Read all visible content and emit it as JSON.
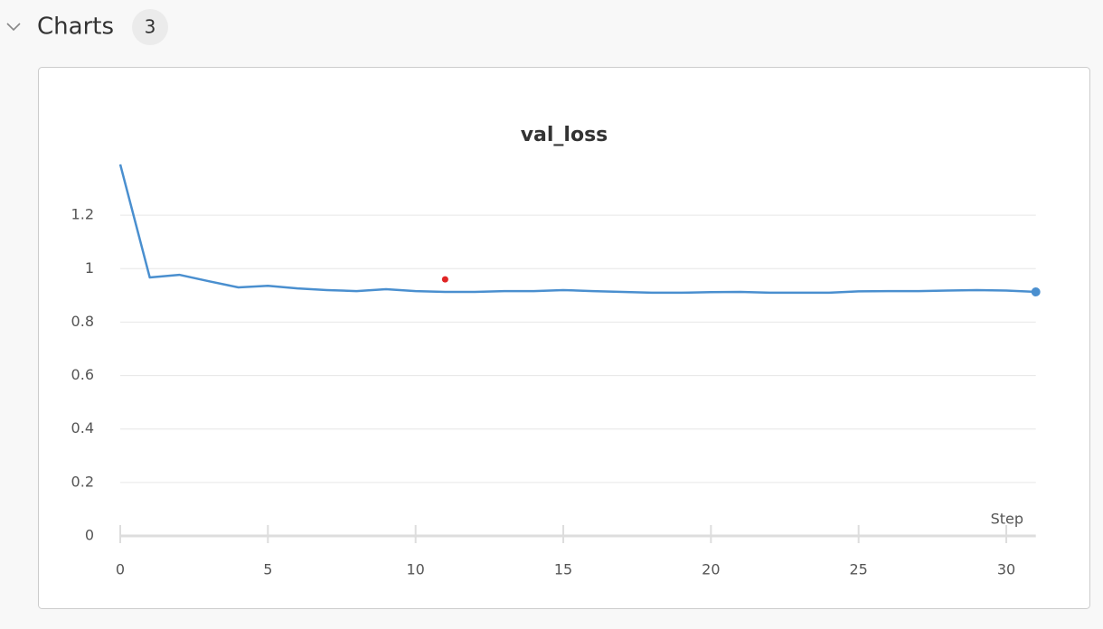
{
  "header": {
    "title": "Charts",
    "count": "3"
  },
  "chart_data": {
    "type": "line",
    "title": "val_loss",
    "x_label": "Step",
    "x": [
      0,
      1,
      2,
      3,
      4,
      5,
      6,
      7,
      8,
      9,
      10,
      11,
      12,
      13,
      14,
      15,
      16,
      17,
      18,
      19,
      20,
      21,
      22,
      23,
      24,
      25,
      26,
      27,
      28,
      29,
      30,
      31
    ],
    "series": [
      {
        "color": "#4a8fcf",
        "end_marker": true,
        "values": [
          1.39,
          0.967,
          0.977,
          0.953,
          0.93,
          0.936,
          0.926,
          0.92,
          0.916,
          0.923,
          0.916,
          0.913,
          0.913,
          0.916,
          0.916,
          0.92,
          0.916,
          0.913,
          0.91,
          0.91,
          0.912,
          0.913,
          0.91,
          0.91,
          0.91,
          0.915,
          0.916,
          0.916,
          0.918,
          0.92,
          0.918,
          0.913
        ]
      },
      {
        "color": "#e02424",
        "markers_only": true,
        "values": [
          null,
          null,
          null,
          null,
          null,
          null,
          null,
          null,
          null,
          null,
          null,
          0.96,
          null,
          null,
          null,
          null,
          null,
          null,
          null,
          null,
          null,
          null,
          null,
          null,
          null,
          null,
          null,
          null,
          null,
          null,
          null,
          null
        ]
      }
    ],
    "xlim": [
      0,
      31
    ],
    "xticks": [
      0,
      5,
      10,
      15,
      20,
      25,
      30
    ],
    "ylim": [
      0,
      1.4
    ],
    "yticks": [
      0,
      0.2,
      0.4,
      0.6,
      0.8,
      1,
      1.2
    ],
    "grid": true
  }
}
